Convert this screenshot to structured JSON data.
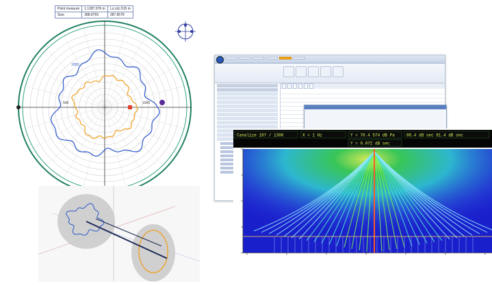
{
  "polar": {
    "info_table": {
      "rows": [
        {
          "label": "Point measure",
          "value_a": "1.1287.976 m",
          "value_b": "Lx.Ldc.515 m"
        },
        {
          "label": "Size",
          "value_a": "388.8765",
          "value_b": "387.8578"
        }
      ]
    },
    "ring_labels": [
      "1000",
      "500",
      "1000"
    ],
    "colors": {
      "blue_profile": "#2a57c9",
      "orange_profile": "#f0a020",
      "outer_ring": "#1f7f63",
      "marker_red": "#e0402a",
      "marker_purple": "#5a2a9a"
    }
  },
  "app": {
    "ribbon_tabs": [
      "",
      "",
      "",
      "",
      "",
      ""
    ],
    "active_tab_index": 4
  },
  "spectrum": {
    "readouts": [
      {
        "text": "Canalize 187 / 1300"
      },
      {
        "text": "X = 1 Hz"
      },
      {
        "text": "Y = 78.4 574 dB Pa"
      },
      {
        "text": "86.4 dB sec 81.4 dB sec"
      },
      {
        "text": "Y = 0.072 dB sec"
      }
    ],
    "colors": {
      "background": "#1a1fcc",
      "center_line": "#ff5a1f",
      "mid_band": "#2ccf52",
      "outer_band": "#3fe0e8"
    }
  }
}
